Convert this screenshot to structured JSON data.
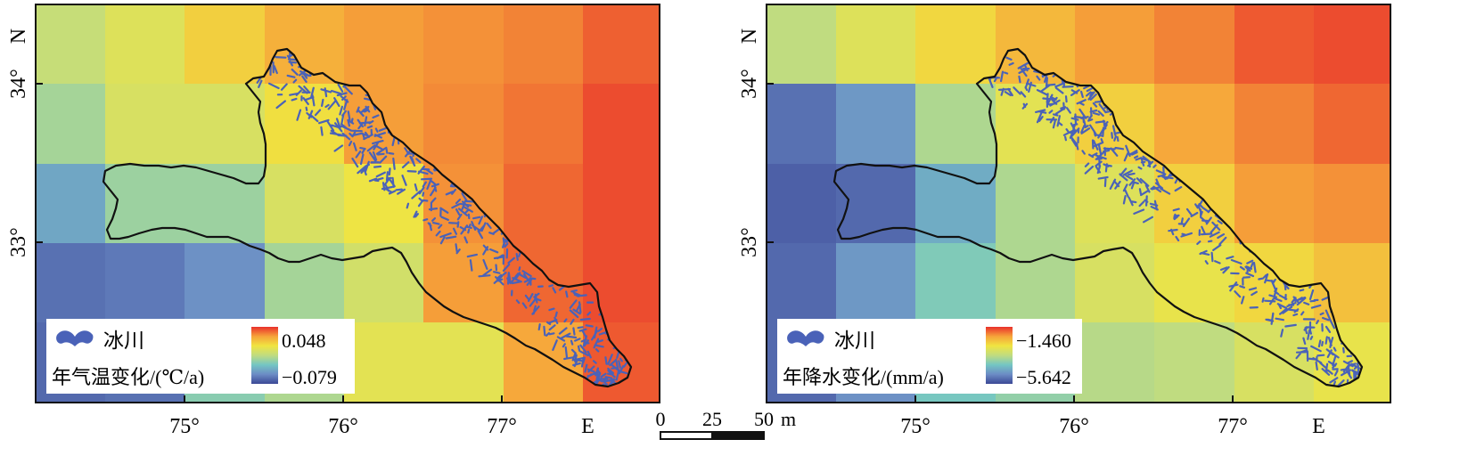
{
  "maps": [
    {
      "id": "temperature",
      "lat_labels": [
        {
          "text": "N",
          "lat": 34.3
        },
        {
          "text": "34°",
          "lat": 34.0
        },
        {
          "text": "33°",
          "lat": 33.0
        }
      ],
      "lon_labels": [
        {
          "text": "75°",
          "lon": 75.0
        },
        {
          "text": "76°",
          "lon": 76.0
        },
        {
          "text": "77°",
          "lon": 77.0
        },
        {
          "text": "E",
          "lon": 77.25
        }
      ],
      "legend": {
        "glacier_label": "冰川",
        "title": "年气温变化/(℃/a)",
        "max_label": "0.048",
        "min_label": "−0.079",
        "max_value": 0.048,
        "min_value": -0.079
      },
      "grid": [
        [
          0.52,
          0.6,
          0.72,
          0.8,
          0.84,
          0.86,
          0.88,
          0.93
        ],
        [
          0.44,
          0.58,
          0.58,
          0.68,
          0.84,
          0.87,
          0.9,
          0.96
        ],
        [
          0.24,
          0.42,
          0.42,
          0.58,
          0.66,
          0.86,
          0.92,
          0.96
        ],
        [
          0.1,
          0.12,
          0.18,
          0.44,
          0.56,
          0.84,
          0.92,
          0.96
        ],
        [
          0.08,
          0.1,
          0.38,
          0.46,
          0.62,
          0.62,
          0.82,
          0.94
        ]
      ]
    },
    {
      "id": "precipitation",
      "lat_labels": [
        {
          "text": "N",
          "lat": 34.3
        },
        {
          "text": "34°",
          "lat": 34.0
        },
        {
          "text": "33°",
          "lat": 33.0
        }
      ],
      "lon_labels": [
        {
          "text": "75°",
          "lon": 75.0
        },
        {
          "text": "76°",
          "lon": 76.0
        },
        {
          "text": "77°",
          "lon": 77.0
        },
        {
          "text": "E",
          "lon": 77.25
        }
      ],
      "legend": {
        "glacier_label": "冰川",
        "title": "年降水变化/(mm/a)",
        "max_label": "−1.460",
        "min_label": "−5.642",
        "max_value": -1.46,
        "min_value": -5.642
      },
      "grid": [
        [
          0.5,
          0.6,
          0.7,
          0.78,
          0.84,
          0.88,
          0.94,
          0.96
        ],
        [
          0.1,
          0.2,
          0.46,
          0.62,
          0.72,
          0.82,
          0.88,
          0.92
        ],
        [
          0.06,
          0.08,
          0.26,
          0.46,
          0.6,
          0.72,
          0.84,
          0.86
        ],
        [
          0.08,
          0.2,
          0.36,
          0.46,
          0.58,
          0.64,
          0.7,
          0.76
        ],
        [
          0.08,
          0.18,
          0.34,
          0.4,
          0.48,
          0.5,
          0.58,
          0.64
        ]
      ]
    }
  ],
  "scalebar": {
    "labels": [
      "0",
      "25",
      "50"
    ],
    "unit": "m"
  },
  "colors": {
    "glacier": "#4a62b8",
    "boundary": "#111111",
    "ramp": [
      "#3b4896",
      "#6c8cc5",
      "#74c6c3",
      "#c0dc80",
      "#f0e441",
      "#f6a33a",
      "#e9302b"
    ]
  }
}
